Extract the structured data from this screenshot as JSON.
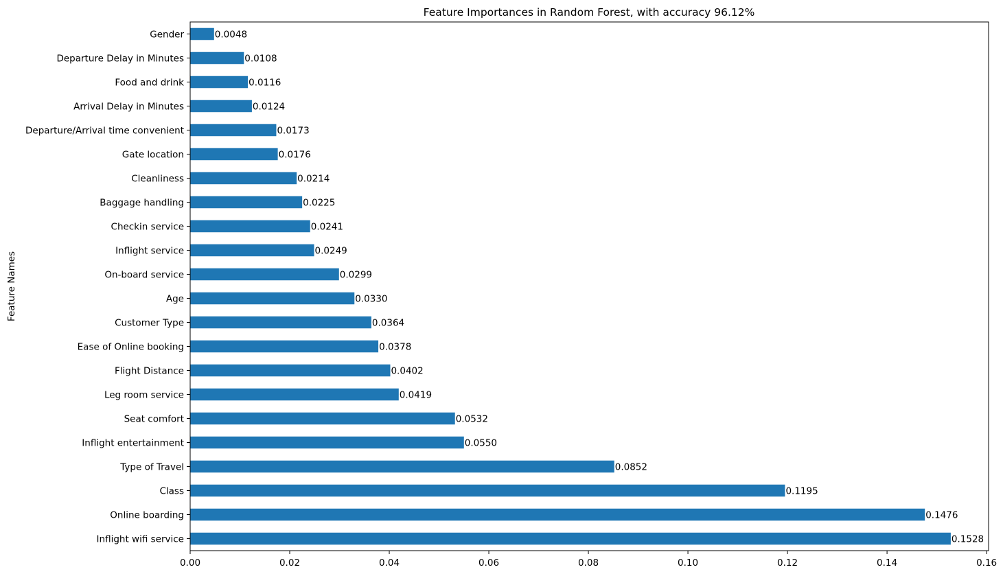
{
  "chart_data": {
    "type": "bar",
    "orientation": "horizontal",
    "title": "Feature Importances in Random Forest, with accuracy 96.12%",
    "xlabel": "",
    "ylabel": "Feature Names",
    "xlim": [
      0,
      0.1604
    ],
    "xticks": [
      "0.00",
      "0.02",
      "0.04",
      "0.06",
      "0.08",
      "0.10",
      "0.12",
      "0.14",
      "0.16"
    ],
    "grid": false,
    "bar_color": "#1f77b4",
    "categories": [
      "Gender",
      "Departure Delay in Minutes",
      "Food and drink",
      "Arrival Delay in Minutes",
      "Departure/Arrival time convenient",
      "Gate location",
      "Cleanliness",
      "Baggage handling",
      "Checkin service",
      "Inflight service",
      "On-board service",
      "Age",
      "Customer Type",
      "Ease of Online booking",
      "Flight Distance",
      "Leg room service",
      "Seat comfort",
      "Inflight entertainment",
      "Type of Travel",
      "Class",
      "Online boarding",
      "Inflight wifi service"
    ],
    "values": [
      0.0048,
      0.0108,
      0.0116,
      0.0124,
      0.0173,
      0.0176,
      0.0214,
      0.0225,
      0.0241,
      0.0249,
      0.0299,
      0.033,
      0.0364,
      0.0378,
      0.0402,
      0.0419,
      0.0532,
      0.055,
      0.0852,
      0.1195,
      0.1476,
      0.1528
    ],
    "value_labels": [
      "0.0048",
      "0.0108",
      "0.0116",
      "0.0124",
      "0.0173",
      "0.0176",
      "0.0214",
      "0.0225",
      "0.0241",
      "0.0249",
      "0.0299",
      "0.0330",
      "0.0364",
      "0.0378",
      "0.0402",
      "0.0419",
      "0.0532",
      "0.0550",
      "0.0852",
      "0.1195",
      "0.1476",
      "0.1528"
    ]
  }
}
